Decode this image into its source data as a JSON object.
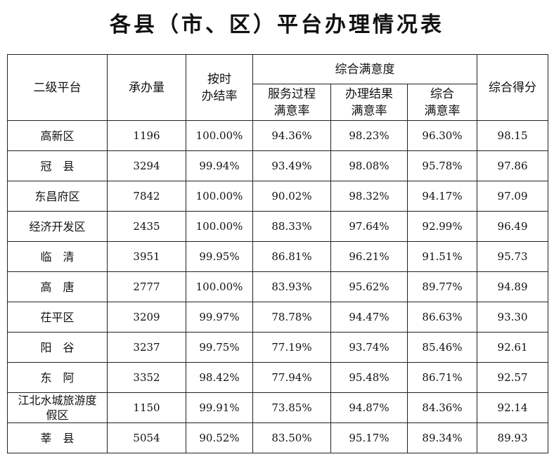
{
  "title": "各县（市、区）平台办理情况表",
  "headers": {
    "platform": "二级平台",
    "volume": "承办量",
    "ontime": "按时\n办结率",
    "satisfaction_group": "综合满意度",
    "process": "服务过程\n满意率",
    "result": "办理结果\n满意率",
    "overall": "综合\n满意率",
    "score": "综合得分"
  },
  "rows": [
    {
      "name": "高新区",
      "volume": "1196",
      "ontime": "100.00%",
      "process": "94.36%",
      "result": "98.23%",
      "overall": "96.30%",
      "score": "98.15"
    },
    {
      "name": "冠　县",
      "volume": "3294",
      "ontime": "99.94%",
      "process": "93.49%",
      "result": "98.08%",
      "overall": "95.78%",
      "score": "97.86"
    },
    {
      "name": "东昌府区",
      "volume": "7842",
      "ontime": "100.00%",
      "process": "90.02%",
      "result": "98.32%",
      "overall": "94.17%",
      "score": "97.09"
    },
    {
      "name": "经济开发区",
      "volume": "2435",
      "ontime": "100.00%",
      "process": "88.33%",
      "result": "97.64%",
      "overall": "92.99%",
      "score": "96.49"
    },
    {
      "name": "临　清",
      "volume": "3951",
      "ontime": "99.95%",
      "process": "86.81%",
      "result": "96.21%",
      "overall": "91.51%",
      "score": "95.73"
    },
    {
      "name": "高　唐",
      "volume": "2777",
      "ontime": "100.00%",
      "process": "83.93%",
      "result": "95.62%",
      "overall": "89.77%",
      "score": "94.89"
    },
    {
      "name": "茌平区",
      "volume": "3209",
      "ontime": "99.97%",
      "process": "78.78%",
      "result": "94.47%",
      "overall": "86.63%",
      "score": "93.30"
    },
    {
      "name": "阳　谷",
      "volume": "3237",
      "ontime": "99.75%",
      "process": "77.19%",
      "result": "93.74%",
      "overall": "85.46%",
      "score": "92.61"
    },
    {
      "name": "东　阿",
      "volume": "3352",
      "ontime": "98.42%",
      "process": "77.94%",
      "result": "95.48%",
      "overall": "86.71%",
      "score": "92.57"
    },
    {
      "name": "江北水城旅游度假区",
      "volume": "1150",
      "ontime": "99.91%",
      "process": "73.85%",
      "result": "94.87%",
      "overall": "84.36%",
      "score": "92.14"
    },
    {
      "name": "莘　县",
      "volume": "5054",
      "ontime": "90.52%",
      "process": "83.50%",
      "result": "95.17%",
      "overall": "89.34%",
      "score": "89.93"
    }
  ]
}
